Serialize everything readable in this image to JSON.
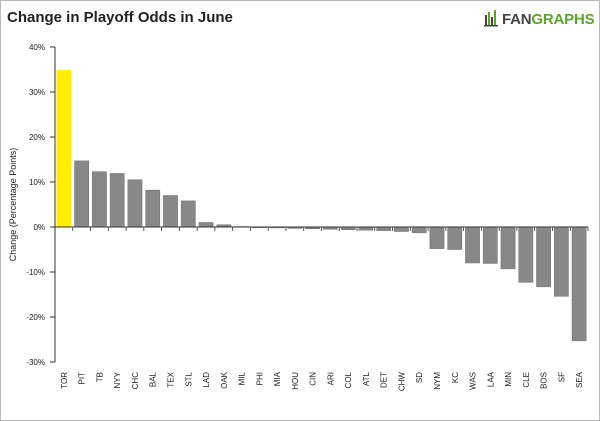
{
  "header": {
    "title": "Change in Playoff Odds in June"
  },
  "logo": {
    "fan": "FAN",
    "graphs": "GRAPHS",
    "fan_color": "#444444",
    "graphs_color": "#5aa52a",
    "icon": "fangraphs-logo-icon"
  },
  "colors": {
    "highlight": "#ffee00",
    "bar": "#888888",
    "bar_stroke": "#6e6e6e",
    "axis": "#333333"
  },
  "chart_data": {
    "type": "bar",
    "title": "Change in Playoff Odds in June",
    "xlabel": "",
    "ylabel": "Change (Percentage Points)",
    "ylim": [
      -30,
      40
    ],
    "ytick_values": [
      -30,
      -20,
      -10,
      0,
      10,
      20,
      30,
      40
    ],
    "ytick_labels": [
      "-30%",
      "-20%",
      "-10%",
      "0%",
      "10%",
      "20%",
      "30%",
      "40%"
    ],
    "grid": false,
    "legend": "none",
    "highlight_categories": [
      "TOR"
    ],
    "categories": [
      "TOR",
      "PIT",
      "TB",
      "NYY",
      "CHC",
      "BAL",
      "TEX",
      "STL",
      "LAD",
      "OAK",
      "MIL",
      "PHI",
      "MIA",
      "HOU",
      "CIN",
      "ARI",
      "COL",
      "ATL",
      "DET",
      "CHW",
      "SD",
      "NYM",
      "KC",
      "WAS",
      "LAA",
      "MIN",
      "CLE",
      "BOS",
      "SF",
      "SEA"
    ],
    "values": [
      34.8,
      14.7,
      12.3,
      11.9,
      10.5,
      8.2,
      7.0,
      5.8,
      1.0,
      0.5,
      0.1,
      -0.1,
      -0.2,
      -0.3,
      -0.4,
      -0.5,
      -0.6,
      -0.7,
      -0.8,
      -1.0,
      -1.3,
      -4.8,
      -5.0,
      -8.0,
      -8.1,
      -9.3,
      -12.3,
      -13.3,
      -15.4,
      -25.3
    ]
  }
}
